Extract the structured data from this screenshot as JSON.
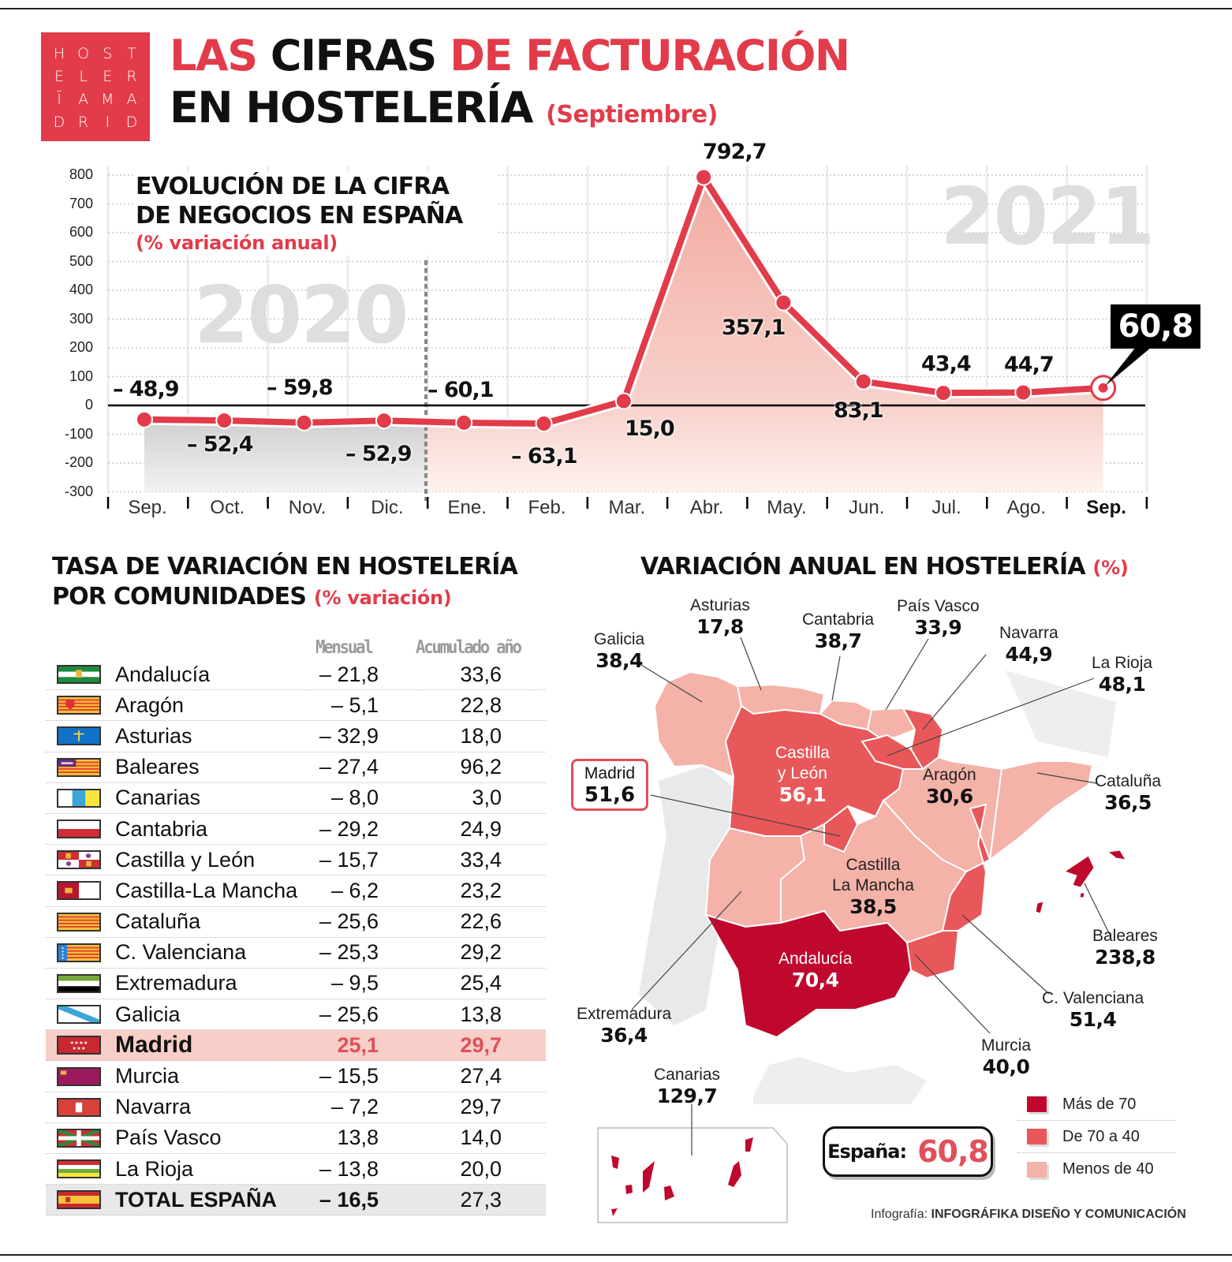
{
  "logo": {
    "rows": [
      [
        "H",
        "O",
        "S",
        "T"
      ],
      [
        "E",
        "L",
        "E",
        "R"
      ],
      [
        "Ī",
        "A",
        "M",
        "A"
      ],
      [
        "D",
        "R",
        "I",
        "D"
      ]
    ]
  },
  "header": {
    "title_w1": "LAS",
    "title_w2": "CIFRAS",
    "title_w3": "DE FACTURACIÓN",
    "title_line2": "EN HOSTELERÍA",
    "title_sub": "(Septiembre)"
  },
  "chart_data": {
    "type": "line",
    "title": "EVOLUCIÓN DE LA CIFRA DE NEGOCIOS EN ESPAÑA",
    "subtitle": "(% variación anual)",
    "categories": [
      "Sep.",
      "Oct.",
      "Nov.",
      "Dic.",
      "Ene.",
      "Feb.",
      "Mar.",
      "Abr.",
      "May.",
      "Jun.",
      "Jul.",
      "Ago.",
      "Sep."
    ],
    "values": [
      -48.9,
      -52.4,
      -59.8,
      -52.9,
      -60.1,
      -63.1,
      15.0,
      792.7,
      357.1,
      83.1,
      43.4,
      44.7,
      60.8
    ],
    "value_labels": [
      "– 48,9",
      "– 52,4",
      "– 59,8",
      "– 52,9",
      "– 60,1",
      "– 63,1",
      "15,0",
      "792,7",
      "357,1",
      "83,1",
      "43,4",
      "44,7",
      "60,8"
    ],
    "year_labels": [
      {
        "text": "2020",
        "span": [
          "Sep.",
          "Dic."
        ]
      },
      {
        "text": "2021",
        "span": [
          "Ene.",
          "Sep."
        ]
      }
    ],
    "yticks": [
      800,
      700,
      600,
      500,
      400,
      300,
      200,
      100,
      0,
      -100,
      -200,
      -300
    ],
    "ylim": [
      -300,
      800
    ],
    "xlabel": "",
    "ylabel": "",
    "grid": true,
    "highlight": {
      "category": "Sep.",
      "value_label": "60,8"
    },
    "colors": {
      "line": "#e23b4a",
      "fill_2021": "#f4b9b0",
      "fill_2020": "#d4d4d4"
    }
  },
  "table": {
    "title_line1": "TASA DE VARIACIÓN EN HOSTELERÍA",
    "title_line2": "POR COMUNIDADES",
    "title_sub": "(% variación)",
    "col_monthly": "Mensual",
    "col_ytd": "Acumulado año",
    "rows": [
      {
        "name": "Andalucía",
        "monthly": "– 21,8",
        "ytd": "33,6",
        "flag": "andalucia"
      },
      {
        "name": "Aragón",
        "monthly": "– 5,1",
        "ytd": "22,8",
        "flag": "aragon"
      },
      {
        "name": "Asturias",
        "monthly": "– 32,9",
        "ytd": "18,0",
        "flag": "asturias"
      },
      {
        "name": "Baleares",
        "monthly": "– 27,4",
        "ytd": "96,2",
        "flag": "baleares"
      },
      {
        "name": "Canarias",
        "monthly": "– 8,0",
        "ytd": "3,0",
        "flag": "canarias"
      },
      {
        "name": "Cantabria",
        "monthly": "– 29,2",
        "ytd": "24,9",
        "flag": "cantabria"
      },
      {
        "name": "Castilla y León",
        "monthly": "– 15,7",
        "ytd": "33,4",
        "flag": "cyl"
      },
      {
        "name": "Castilla-La Mancha",
        "monthly": "– 6,2",
        "ytd": "23,2",
        "flag": "clm"
      },
      {
        "name": "Cataluña",
        "monthly": "– 25,6",
        "ytd": "22,6",
        "flag": "cataluna"
      },
      {
        "name": "C. Valenciana",
        "monthly": "– 25,3",
        "ytd": "29,2",
        "flag": "valencia"
      },
      {
        "name": "Extremadura",
        "monthly": "– 9,5",
        "ytd": "25,4",
        "flag": "extremadura"
      },
      {
        "name": "Galicia",
        "monthly": "– 25,6",
        "ytd": "13,8",
        "flag": "galicia"
      },
      {
        "name": "Madrid",
        "monthly": "25,1",
        "ytd": "29,7",
        "flag": "madrid",
        "highlight": true
      },
      {
        "name": "Murcia",
        "monthly": "– 15,5",
        "ytd": "27,4",
        "flag": "murcia"
      },
      {
        "name": "Navarra",
        "monthly": "– 7,2",
        "ytd": "29,7",
        "flag": "navarra"
      },
      {
        "name": "País Vasco",
        "monthly": "13,8",
        "ytd": "14,0",
        "flag": "paisvasco"
      },
      {
        "name": "La Rioja",
        "monthly": "– 13,8",
        "ytd": "20,0",
        "flag": "larioja"
      },
      {
        "name": "TOTAL ESPAÑA",
        "monthly": "– 16,5",
        "ytd": "27,3",
        "flag": "espana",
        "total": true
      }
    ]
  },
  "map": {
    "title": "VARIACIÓN ANUAL EN HOSTELERÍA",
    "title_sub": "(%)",
    "regions": {
      "galicia": {
        "name": "Galicia",
        "value": "38,4"
      },
      "asturias": {
        "name": "Asturias",
        "value": "17,8"
      },
      "cantabria": {
        "name": "Cantabria",
        "value": "38,7"
      },
      "paisvasco": {
        "name": "País Vasco",
        "value": "33,9"
      },
      "navarra": {
        "name": "Navarra",
        "value": "44,9"
      },
      "larioja": {
        "name": "La Rioja",
        "value": "48,1"
      },
      "cyl": {
        "name1": "Castilla",
        "name2": "y León",
        "value": "56,1"
      },
      "madrid": {
        "name": "Madrid",
        "value": "51,6"
      },
      "aragon": {
        "name": "Aragón",
        "value": "30,6"
      },
      "cataluna": {
        "name": "Cataluña",
        "value": "36,5"
      },
      "clm": {
        "name1": "Castilla",
        "name2": "La Mancha",
        "value": "38,5"
      },
      "baleares": {
        "name": "Baleares",
        "value": "238,8"
      },
      "extremadura": {
        "name": "Extremadura",
        "value": "36,4"
      },
      "andalucia": {
        "name": "Andalucía",
        "value": "70,4"
      },
      "valencia": {
        "name": "C. Valenciana",
        "value": "51,4"
      },
      "murcia": {
        "name": "Murcia",
        "value": "40,0"
      },
      "canarias": {
        "name": "Canarias",
        "value": "129,7"
      }
    },
    "spain_label": "España:",
    "spain_value": "60,8",
    "legend": [
      {
        "label": "Más de 70",
        "color": "#c0082e"
      },
      {
        "label": "De 70 a 40",
        "color": "#e8585a"
      },
      {
        "label": "Menos de 40",
        "color": "#f4b2a8"
      }
    ]
  },
  "credit": {
    "prefix": "Infografía: ",
    "name": "INFOGRÁFIKA DISEÑO Y COMUNICACIÓN"
  }
}
